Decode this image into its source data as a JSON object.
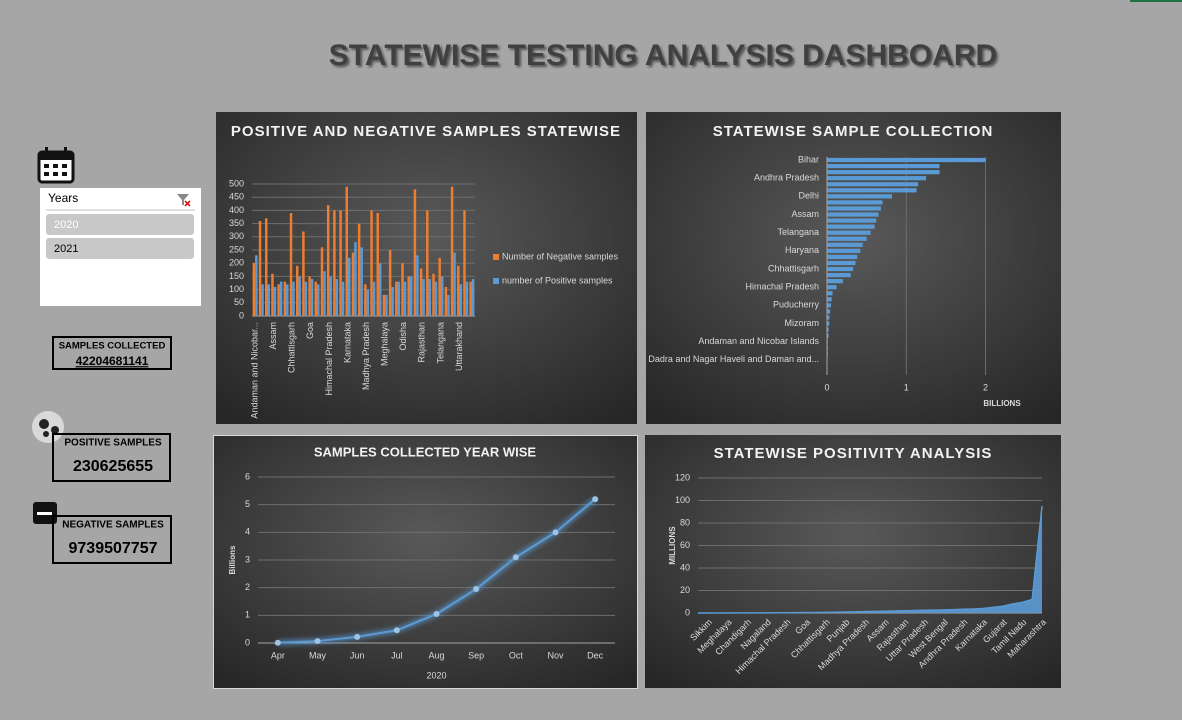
{
  "title": "STATEWISE TESTING ANALYSIS DASHBOARD",
  "slicer": {
    "title": "Years",
    "items": [
      "2020",
      "2021"
    ]
  },
  "kpis": [
    {
      "label": "SAMPLES COLLECTED",
      "value": "42204681141"
    },
    {
      "label": "POSITIVE SAMPLES",
      "value": "230625655"
    },
    {
      "label": "NEGATIVE SAMPLES",
      "value": "9739507757"
    }
  ],
  "chart_data": [
    {
      "type": "bar",
      "title": "POSITIVE AND NEGATIVE SAMPLES STATEWISE",
      "categories": [
        "Andaman and Nicobar...",
        null,
        null,
        "Assam",
        null,
        null,
        "Chhattisgarh",
        null,
        null,
        "Goa",
        null,
        null,
        "Himachal Pradesh",
        null,
        null,
        "Karnataka",
        null,
        null,
        "Madhya Pradesh",
        null,
        null,
        "Meghalaya",
        null,
        null,
        "Odisha",
        null,
        null,
        "Rajasthan",
        null,
        null,
        "Telangana",
        null,
        null,
        "Uttarakhand",
        null,
        null
      ],
      "series": [
        {
          "name": "Number of Negative samples",
          "color": "#ed7d31",
          "values": [
            200,
            360,
            370,
            160,
            120,
            130,
            390,
            190,
            320,
            150,
            130,
            260,
            420,
            400,
            400,
            490,
            240,
            350,
            120,
            400,
            390,
            80,
            250,
            130,
            200,
            150,
            480,
            180,
            400,
            160,
            220,
            110,
            490,
            190,
            400,
            130
          ]
        },
        {
          "name": "number of Positive samples",
          "color": "#5b9bd5",
          "values": [
            230,
            120,
            120,
            110,
            130,
            120,
            130,
            150,
            130,
            140,
            120,
            170,
            150,
            140,
            130,
            220,
            280,
            260,
            100,
            130,
            200,
            80,
            110,
            130,
            130,
            150,
            230,
            140,
            140,
            130,
            150,
            80,
            240,
            120,
            130,
            140
          ]
        }
      ],
      "ylim": [
        0,
        500
      ],
      "yticks": [
        0,
        50,
        100,
        150,
        200,
        250,
        300,
        350,
        400,
        450,
        500
      ],
      "grid": true,
      "legend": "right"
    },
    {
      "type": "bar",
      "horizontal": true,
      "title": "STATEWISE SAMPLE COLLECTION",
      "categories": [
        "Bihar",
        null,
        null,
        "Andhra Pradesh",
        null,
        null,
        "Delhi",
        null,
        null,
        "Assam",
        null,
        null,
        "Telangana",
        null,
        null,
        "Haryana",
        null,
        null,
        "Chhattisgarh",
        null,
        null,
        "Himachal Pradesh",
        null,
        null,
        "Puducherry",
        null,
        null,
        "Mizoram",
        null,
        null,
        "Andaman and Nicobar Islands",
        null,
        null,
        "Dadra and Nagar Haveli and Daman and...",
        null,
        null
      ],
      "values": [
        2.0,
        1.42,
        1.42,
        1.25,
        1.15,
        1.13,
        0.82,
        0.7,
        0.68,
        0.65,
        0.62,
        0.6,
        0.55,
        0.5,
        0.45,
        0.42,
        0.38,
        0.36,
        0.33,
        0.3,
        0.2,
        0.12,
        0.07,
        0.06,
        0.05,
        0.04,
        0.03,
        0.03,
        0.02,
        0.02,
        0.01,
        0.01,
        0.01,
        0.005,
        0.003,
        0.002
      ],
      "color": "#5b9bd5",
      "xlim": [
        0,
        2.75
      ],
      "xticks": [
        0,
        1,
        2
      ],
      "x_label": "BILLIONS",
      "grid": true
    },
    {
      "type": "line",
      "title": "SAMPLES COLLECTED YEAR WISE",
      "categories": [
        "Apr",
        "May",
        "Jun",
        "Jul",
        "Aug",
        "Sep",
        "Oct",
        "Nov",
        "Dec"
      ],
      "values": [
        0.01,
        0.07,
        0.22,
        0.46,
        1.05,
        1.95,
        3.1,
        4.0,
        5.2
      ],
      "color": "#5b9bd5",
      "ylim": [
        0,
        6
      ],
      "yticks": [
        0,
        1,
        2,
        3,
        4,
        5,
        6
      ],
      "y_label": "Billions",
      "x_label": "2020",
      "grid": true
    },
    {
      "type": "area",
      "title": "STATEWISE POSITIVITY ANALYSIS",
      "categories": [
        null,
        "Sikkim",
        null,
        "Meghalaya",
        null,
        "Chandigarh",
        null,
        "Nagaland",
        null,
        "Himachal Pradesh",
        null,
        "Goa",
        null,
        "Chhattisgarh",
        null,
        "Punjab",
        null,
        "Madhya Pradesh",
        null,
        "Assam",
        null,
        "Rajasthan",
        null,
        "Uttar Pradesh",
        null,
        "West Bengal",
        null,
        "Andhra Pradesh",
        null,
        "Karnataka",
        null,
        "Gujarat",
        null,
        "Tamil Nadu",
        null,
        "Maharashtra"
      ],
      "values": [
        0.01,
        0.02,
        0.03,
        0.05,
        0.07,
        0.1,
        0.12,
        0.15,
        0.2,
        0.25,
        0.3,
        0.4,
        0.5,
        0.6,
        0.7,
        0.9,
        1.0,
        1.2,
        1.4,
        1.6,
        1.8,
        2.0,
        2.2,
        2.4,
        2.6,
        2.8,
        3.0,
        3.3,
        3.6,
        4.0,
        5.0,
        6.0,
        8.0,
        9.5,
        12,
        95
      ],
      "color": "#5b9bd5",
      "ylim": [
        0,
        120
      ],
      "yticks": [
        0,
        20,
        40,
        60,
        80,
        100,
        120
      ],
      "y_label": "MILLIONS",
      "grid": true
    }
  ]
}
